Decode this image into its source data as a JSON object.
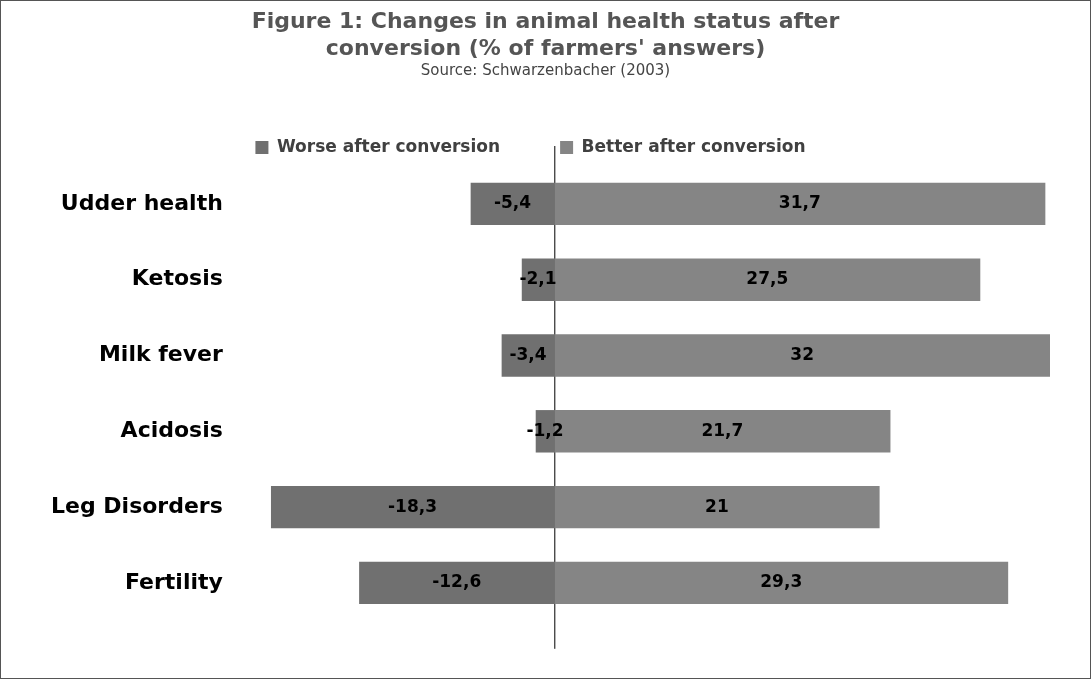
{
  "chart_data": {
    "type": "bar",
    "orientation": "horizontal",
    "stacked": true,
    "legend": "top",
    "title": "Figure 1: Changes in animal health status after conversion (% of farmers' answers)",
    "annotations": [
      "Source: Schwarzenbacher (2003)"
    ],
    "categories": [
      "Udder health",
      "Ketosis",
      "Milk fever",
      "Acidosis",
      "Leg Disorders",
      "Fertility"
    ],
    "series": [
      {
        "name": "Worse after conversion",
        "color": "#707070",
        "values": [
          -5.4,
          -2.1,
          -3.4,
          -1.2,
          -18.3,
          -12.6
        ],
        "value_labels": [
          "-5,4",
          "-2,1",
          "-3,4",
          "-1,2",
          "-18,3",
          "-12,6"
        ]
      },
      {
        "name": "Better after conversion",
        "color": "#858585",
        "values": [
          31.7,
          27.5,
          32,
          21.7,
          21,
          29.3
        ],
        "value_labels": [
          "31,7",
          "27,5",
          "32",
          "21,7",
          "21",
          "29,3"
        ]
      }
    ]
  }
}
